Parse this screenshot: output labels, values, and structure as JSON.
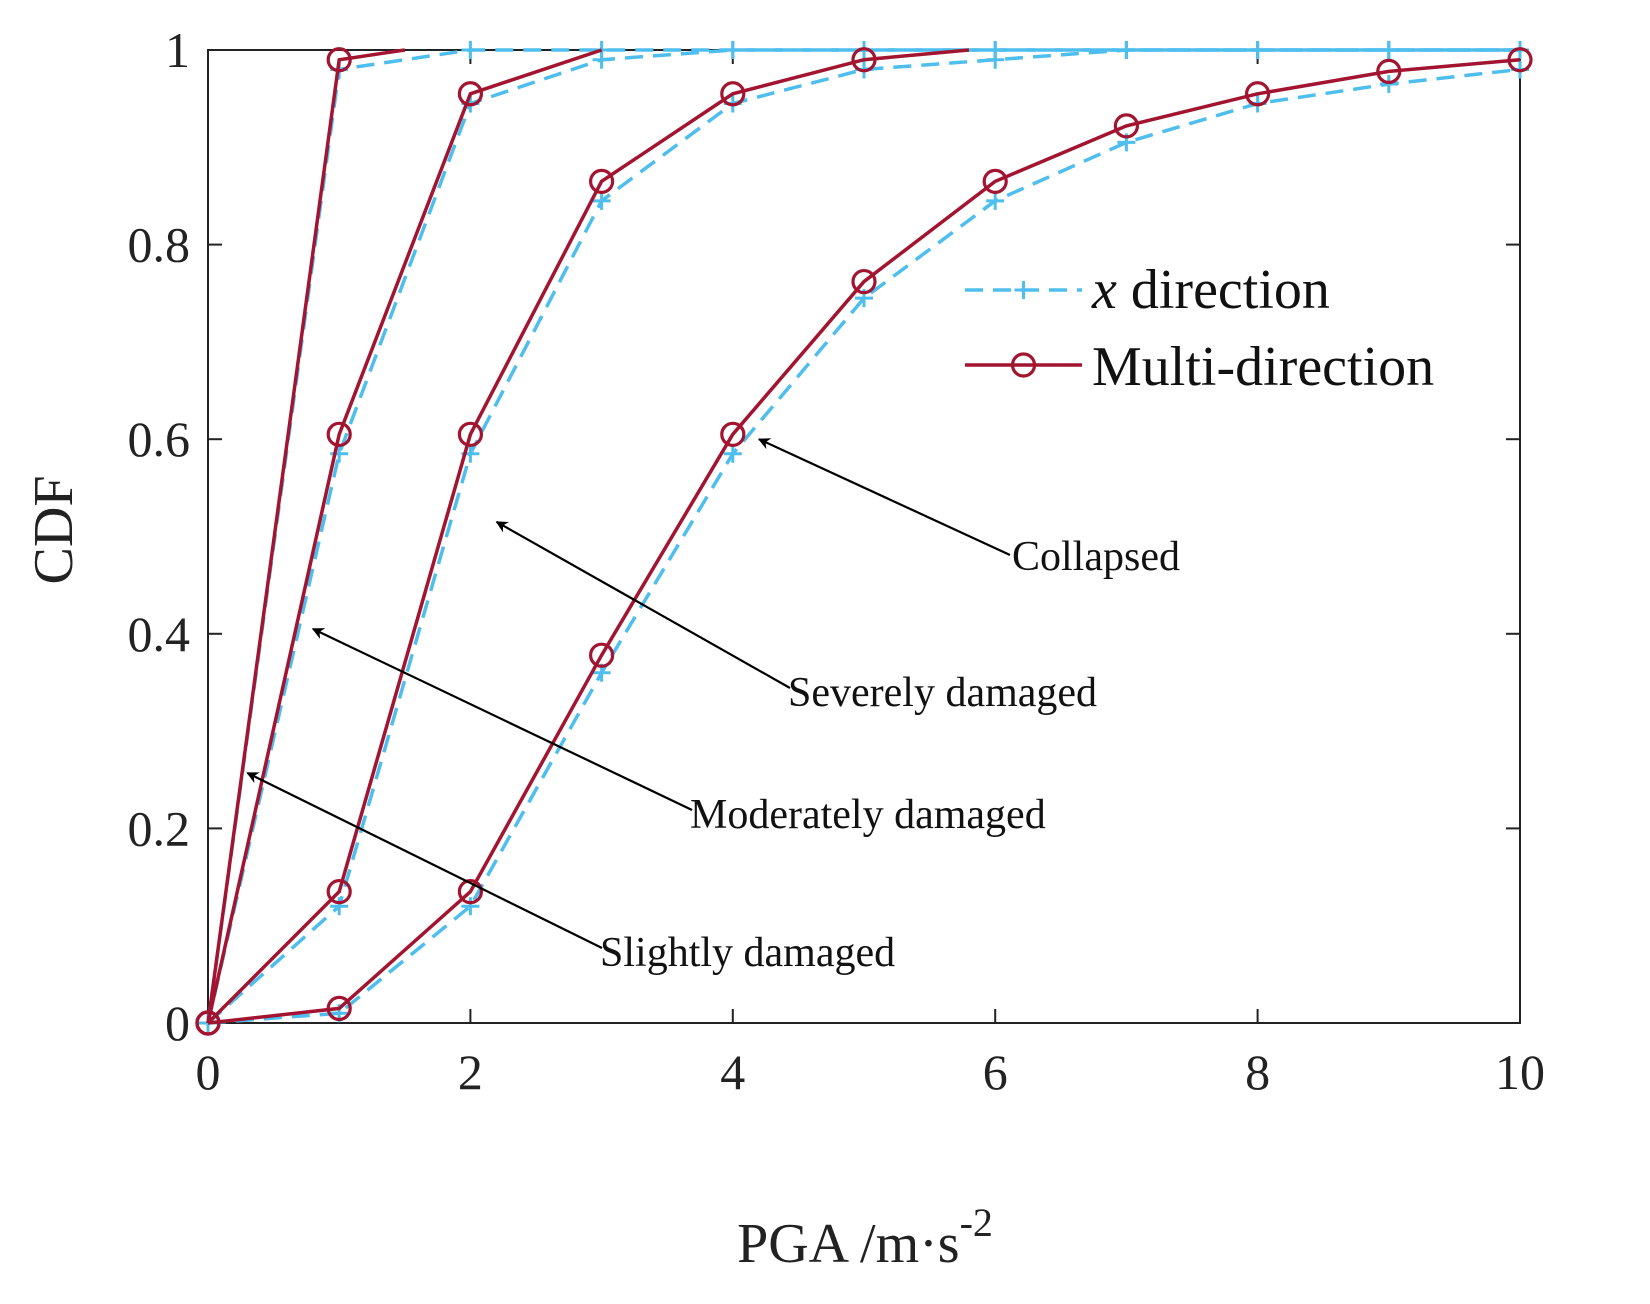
{
  "chart_data": {
    "type": "line",
    "title": "",
    "xlabel": "PGA /m·s",
    "xlabel_superscript": "-2",
    "ylabel": "CDF",
    "xlim": [
      0,
      10
    ],
    "ylim": [
      0,
      1
    ],
    "xticks": [
      "0",
      "2",
      "4",
      "6",
      "8",
      "10"
    ],
    "yticks": [
      "0",
      "0.2",
      "0.4",
      "0.6",
      "0.8",
      "1"
    ],
    "grid": false,
    "legend_position": "right",
    "series": [
      {
        "name": "x direction",
        "legend_italic_part": "x",
        "legend_rest": " direction",
        "style": "dashed-plus",
        "color": "#4DBEEE",
        "curves": [
          {
            "state": "Slightly damaged",
            "x": [
              0,
              1,
              2,
              3,
              4,
              5,
              6,
              7,
              8,
              9,
              10
            ],
            "y": [
              0,
              0.98,
              1,
              1,
              1,
              1,
              1,
              1,
              1,
              1,
              1
            ]
          },
          {
            "state": "Moderately damaged",
            "x": [
              0,
              1,
              2,
              3,
              4,
              5,
              6,
              7,
              8,
              9,
              10
            ],
            "y": [
              0,
              0.585,
              0.945,
              0.99,
              1,
              1,
              1,
              1,
              1,
              1,
              1
            ]
          },
          {
            "state": "Severely damaged",
            "x": [
              0,
              1,
              2,
              3,
              4,
              5,
              6,
              7,
              8,
              9,
              10
            ],
            "y": [
              0,
              0.12,
              0.585,
              0.845,
              0.945,
              0.98,
              0.99,
              1,
              1,
              1,
              1
            ]
          },
          {
            "state": "Collapsed",
            "x": [
              0,
              1,
              2,
              3,
              4,
              5,
              6,
              7,
              8,
              9,
              10
            ],
            "y": [
              0,
              0.01,
              0.12,
              0.36,
              0.585,
              0.745,
              0.845,
              0.905,
              0.945,
              0.965,
              0.98
            ]
          }
        ]
      },
      {
        "name": "Multi-direction",
        "style": "solid-circle",
        "color": "#A2142F",
        "curves": [
          {
            "state": "Slightly damaged",
            "x": [
              0,
              1,
              1.5
            ],
            "y": [
              0,
              0.99,
              1
            ],
            "markers": [
              true,
              true,
              false
            ]
          },
          {
            "state": "Moderately damaged",
            "x": [
              0,
              1,
              2,
              3
            ],
            "y": [
              0,
              0.605,
              0.955,
              1
            ],
            "markers": [
              true,
              true,
              true,
              false
            ]
          },
          {
            "state": "Severely damaged",
            "x": [
              0,
              1,
              2,
              3,
              4,
              5,
              5.8
            ],
            "y": [
              0,
              0.135,
              0.605,
              0.865,
              0.955,
              0.99,
              1
            ],
            "markers": [
              true,
              true,
              true,
              true,
              true,
              true,
              false
            ]
          },
          {
            "state": "Collapsed",
            "x": [
              0,
              1,
              2,
              3,
              4,
              5,
              6,
              7,
              8,
              9,
              10
            ],
            "y": [
              0,
              0.015,
              0.135,
              0.378,
              0.605,
              0.762,
              0.865,
              0.922,
              0.955,
              0.978,
              0.99
            ],
            "markers": [
              true,
              true,
              true,
              true,
              true,
              true,
              true,
              true,
              true,
              true,
              true
            ]
          }
        ]
      }
    ],
    "annotations": [
      {
        "text": "Collapsed",
        "arrow_to": [
          4.2,
          0.6
        ]
      },
      {
        "text": "Severely damaged",
        "arrow_to": [
          2.2,
          0.515
        ]
      },
      {
        "text": "Moderately damaged",
        "arrow_to": [
          0.8,
          0.405
        ]
      },
      {
        "text": "Slightly damaged",
        "arrow_to": [
          0.3,
          0.257
        ]
      }
    ]
  }
}
